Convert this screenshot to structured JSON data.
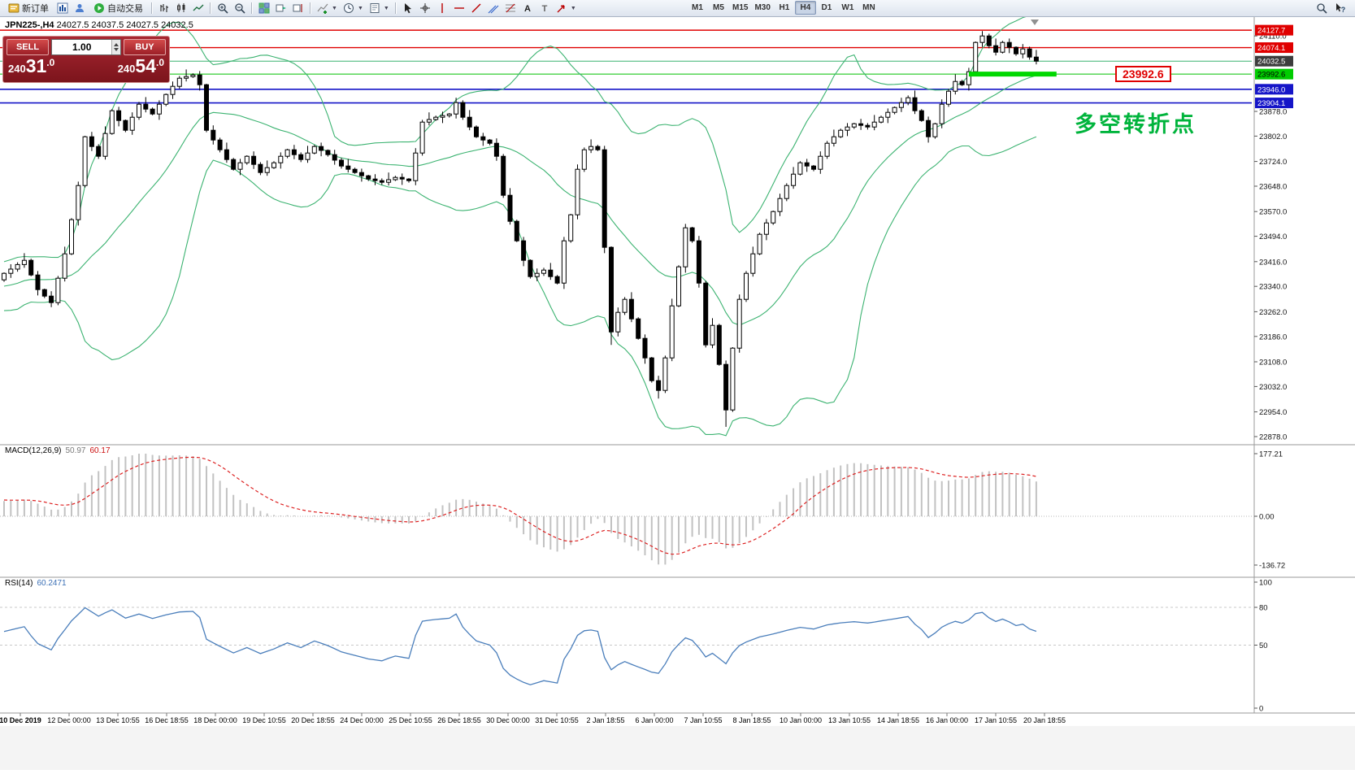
{
  "toolbar": {
    "new_order_label": "新订单",
    "autotrading_label": "自动交易",
    "timeframes": [
      "M1",
      "M5",
      "M15",
      "M30",
      "H1",
      "H4",
      "D1",
      "W1",
      "MN"
    ],
    "active_timeframe": "H4"
  },
  "chart_info": {
    "symbol_period": "JPN225-,H4",
    "ohlc": "24027.5 24037.5 24027.5 24032.5"
  },
  "trade_panel": {
    "sell_label": "SELL",
    "buy_label": "BUY",
    "volume": "1.00",
    "sell_price": "24031.0",
    "buy_price": "24054.0"
  },
  "annotation": {
    "text": "多空转折点",
    "color": "#00b43c"
  },
  "price_flag": {
    "text": "23992.6",
    "color": "#e00000"
  },
  "indicator_labels": {
    "macd_name": "MACD(12,26,9)",
    "macd_value": "50.97",
    "macd_signal": "60.17",
    "rsi_name": "RSI(14)",
    "rsi_value": "60.2471"
  },
  "chart_data": {
    "type": "candlestick",
    "symbol": "JPN225-",
    "period": "H4",
    "ohlc_display": {
      "open": "24027.5",
      "high": "24037.5",
      "low": "24027.5",
      "close": "24032.5"
    },
    "colors": {
      "up": "#ffffff",
      "down": "#000000",
      "wick": "#000000",
      "bollinger": "#3cb371",
      "macd_hist": "#c2c2c2",
      "macd_signal": "#dd2222",
      "rsi": "#4a7ebb",
      "segment": "#00d800"
    },
    "history_closes": [
      23180,
      23220,
      23260,
      23230,
      23190,
      23240,
      23280,
      23320,
      23300,
      23260,
      23300,
      23340,
      23310,
      23280,
      23320,
      23360,
      23400,
      23380,
      23350,
      23320,
      23360,
      23400,
      23370,
      23340,
      23360,
      23360
    ],
    "closes": [
      23380,
      23393,
      23407,
      23420,
      23375,
      23330,
      23310,
      23290,
      23365,
      23440,
      23545,
      23650,
      23800,
      23770,
      23740,
      23810,
      23880,
      23850,
      23820,
      23860,
      23900,
      23885,
      23870,
      23900,
      23930,
      23955,
      23980,
      23985,
      23990,
      23960,
      23820,
      23790,
      23760,
      23730,
      23700,
      23720,
      23740,
      23715,
      23690,
      23705,
      23720,
      23740,
      23760,
      23745,
      23730,
      23750,
      23770,
      23758,
      23745,
      23728,
      23710,
      23700,
      23690,
      23680,
      23670,
      23665,
      23660,
      23668,
      23675,
      23670,
      23665,
      23750,
      23845,
      23853,
      23860,
      23865,
      23870,
      23905,
      23860,
      23830,
      23800,
      23790,
      23780,
      23740,
      23620,
      23540,
      23480,
      23420,
      23370,
      23380,
      23390,
      23370,
      23350,
      23480,
      23560,
      23700,
      23760,
      23770,
      23760,
      23460,
      23200,
      23260,
      23300,
      23240,
      23180,
      23120,
      23050,
      23020,
      23120,
      23280,
      23400,
      23520,
      23480,
      23350,
      23160,
      23220,
      23100,
      22960,
      23150,
      23300,
      23380,
      23440,
      23500,
      23535,
      23570,
      23610,
      23650,
      23685,
      23720,
      23710,
      23700,
      23740,
      23780,
      23800,
      23820,
      23830,
      23840,
      23835,
      23830,
      23845,
      23860,
      23875,
      23890,
      23905,
      23920,
      23880,
      23850,
      23800,
      23840,
      23900,
      23940,
      23970,
      23960,
      24000,
      24090,
      24110,
      24080,
      24060,
      24090,
      24075,
      24055,
      24070,
      24045,
      24032.5
    ],
    "low_overrides": {
      "90": 23160,
      "97": 22995,
      "107": 22908
    },
    "indicators": {
      "bollinger": {
        "period": 20,
        "deviation": 2
      },
      "macd": {
        "label": "MACD(12,26,9)",
        "fast": 12,
        "slow": 26,
        "signal": 9,
        "value": "50.97",
        "signal_value": "60.17",
        "scale_max": "177.21",
        "scale_zero": "0.00",
        "scale_min": "-136.72"
      },
      "rsi": {
        "label": "RSI(14)",
        "period": 14,
        "value": "60.2471",
        "levels": [
          80,
          50
        ],
        "scale_labels": [
          "100",
          "80",
          "50",
          "0"
        ]
      }
    },
    "h_lines": [
      {
        "price": 24127.7,
        "color": "#e00000",
        "width": 1.4
      },
      {
        "price": 24074.1,
        "color": "#e00000",
        "width": 1.4
      },
      {
        "price": 24032.5,
        "color": "#3cb371",
        "width": 1
      },
      {
        "price": 23992.6,
        "color": "#00c000",
        "width": 1
      },
      {
        "price": 23946.0,
        "color": "#1515c8",
        "width": 1.6
      },
      {
        "price": 23904.1,
        "color": "#1515c8",
        "width": 1.6
      }
    ],
    "trend_segment": {
      "price": 23992.6,
      "x1_bar": 143,
      "x2_bar": 156,
      "width": 6
    },
    "price_axis": {
      "ticks": [
        "24110.0",
        "23878.0",
        "23802.0",
        "23724.0",
        "23648.0",
        "23570.0",
        "23494.0",
        "23416.0",
        "23340.0",
        "23262.0",
        "23186.0",
        "23108.0",
        "23032.0",
        "22954.0",
        "22878.0"
      ],
      "badges": [
        {
          "text": "24127.7",
          "bg": "#e00000",
          "fg": "#ffffff"
        },
        {
          "text": "24074.1",
          "bg": "#e00000",
          "fg": "#ffffff"
        },
        {
          "text": "24032.5",
          "bg": "#3c3c3c",
          "fg": "#ffffff"
        },
        {
          "text": "23992.6",
          "bg": "#00cc00",
          "fg": "#000000"
        },
        {
          "text": "23946.0",
          "bg": "#1515c8",
          "fg": "#ffffff"
        },
        {
          "text": "23904.1",
          "bg": "#1515c8",
          "fg": "#ffffff"
        }
      ]
    },
    "time_axis": [
      "10 Dec 2019",
      "12 Dec 00:00",
      "13 Dec 10:55",
      "16 Dec 18:55",
      "18 Dec 00:00",
      "19 Dec 10:55",
      "20 Dec 18:55",
      "24 Dec 00:00",
      "25 Dec 10:55",
      "26 Dec 18:55",
      "30 Dec 00:00",
      "31 Dec 10:55",
      "2 Jan 18:55",
      "6 Jan 00:00",
      "7 Jan 10:55",
      "8 Jan 18:55",
      "10 Jan 00:00",
      "13 Jan 10:55",
      "14 Jan 18:55",
      "16 Jan 00:00",
      "17 Jan 10:55",
      "20 Jan 18:55"
    ]
  }
}
